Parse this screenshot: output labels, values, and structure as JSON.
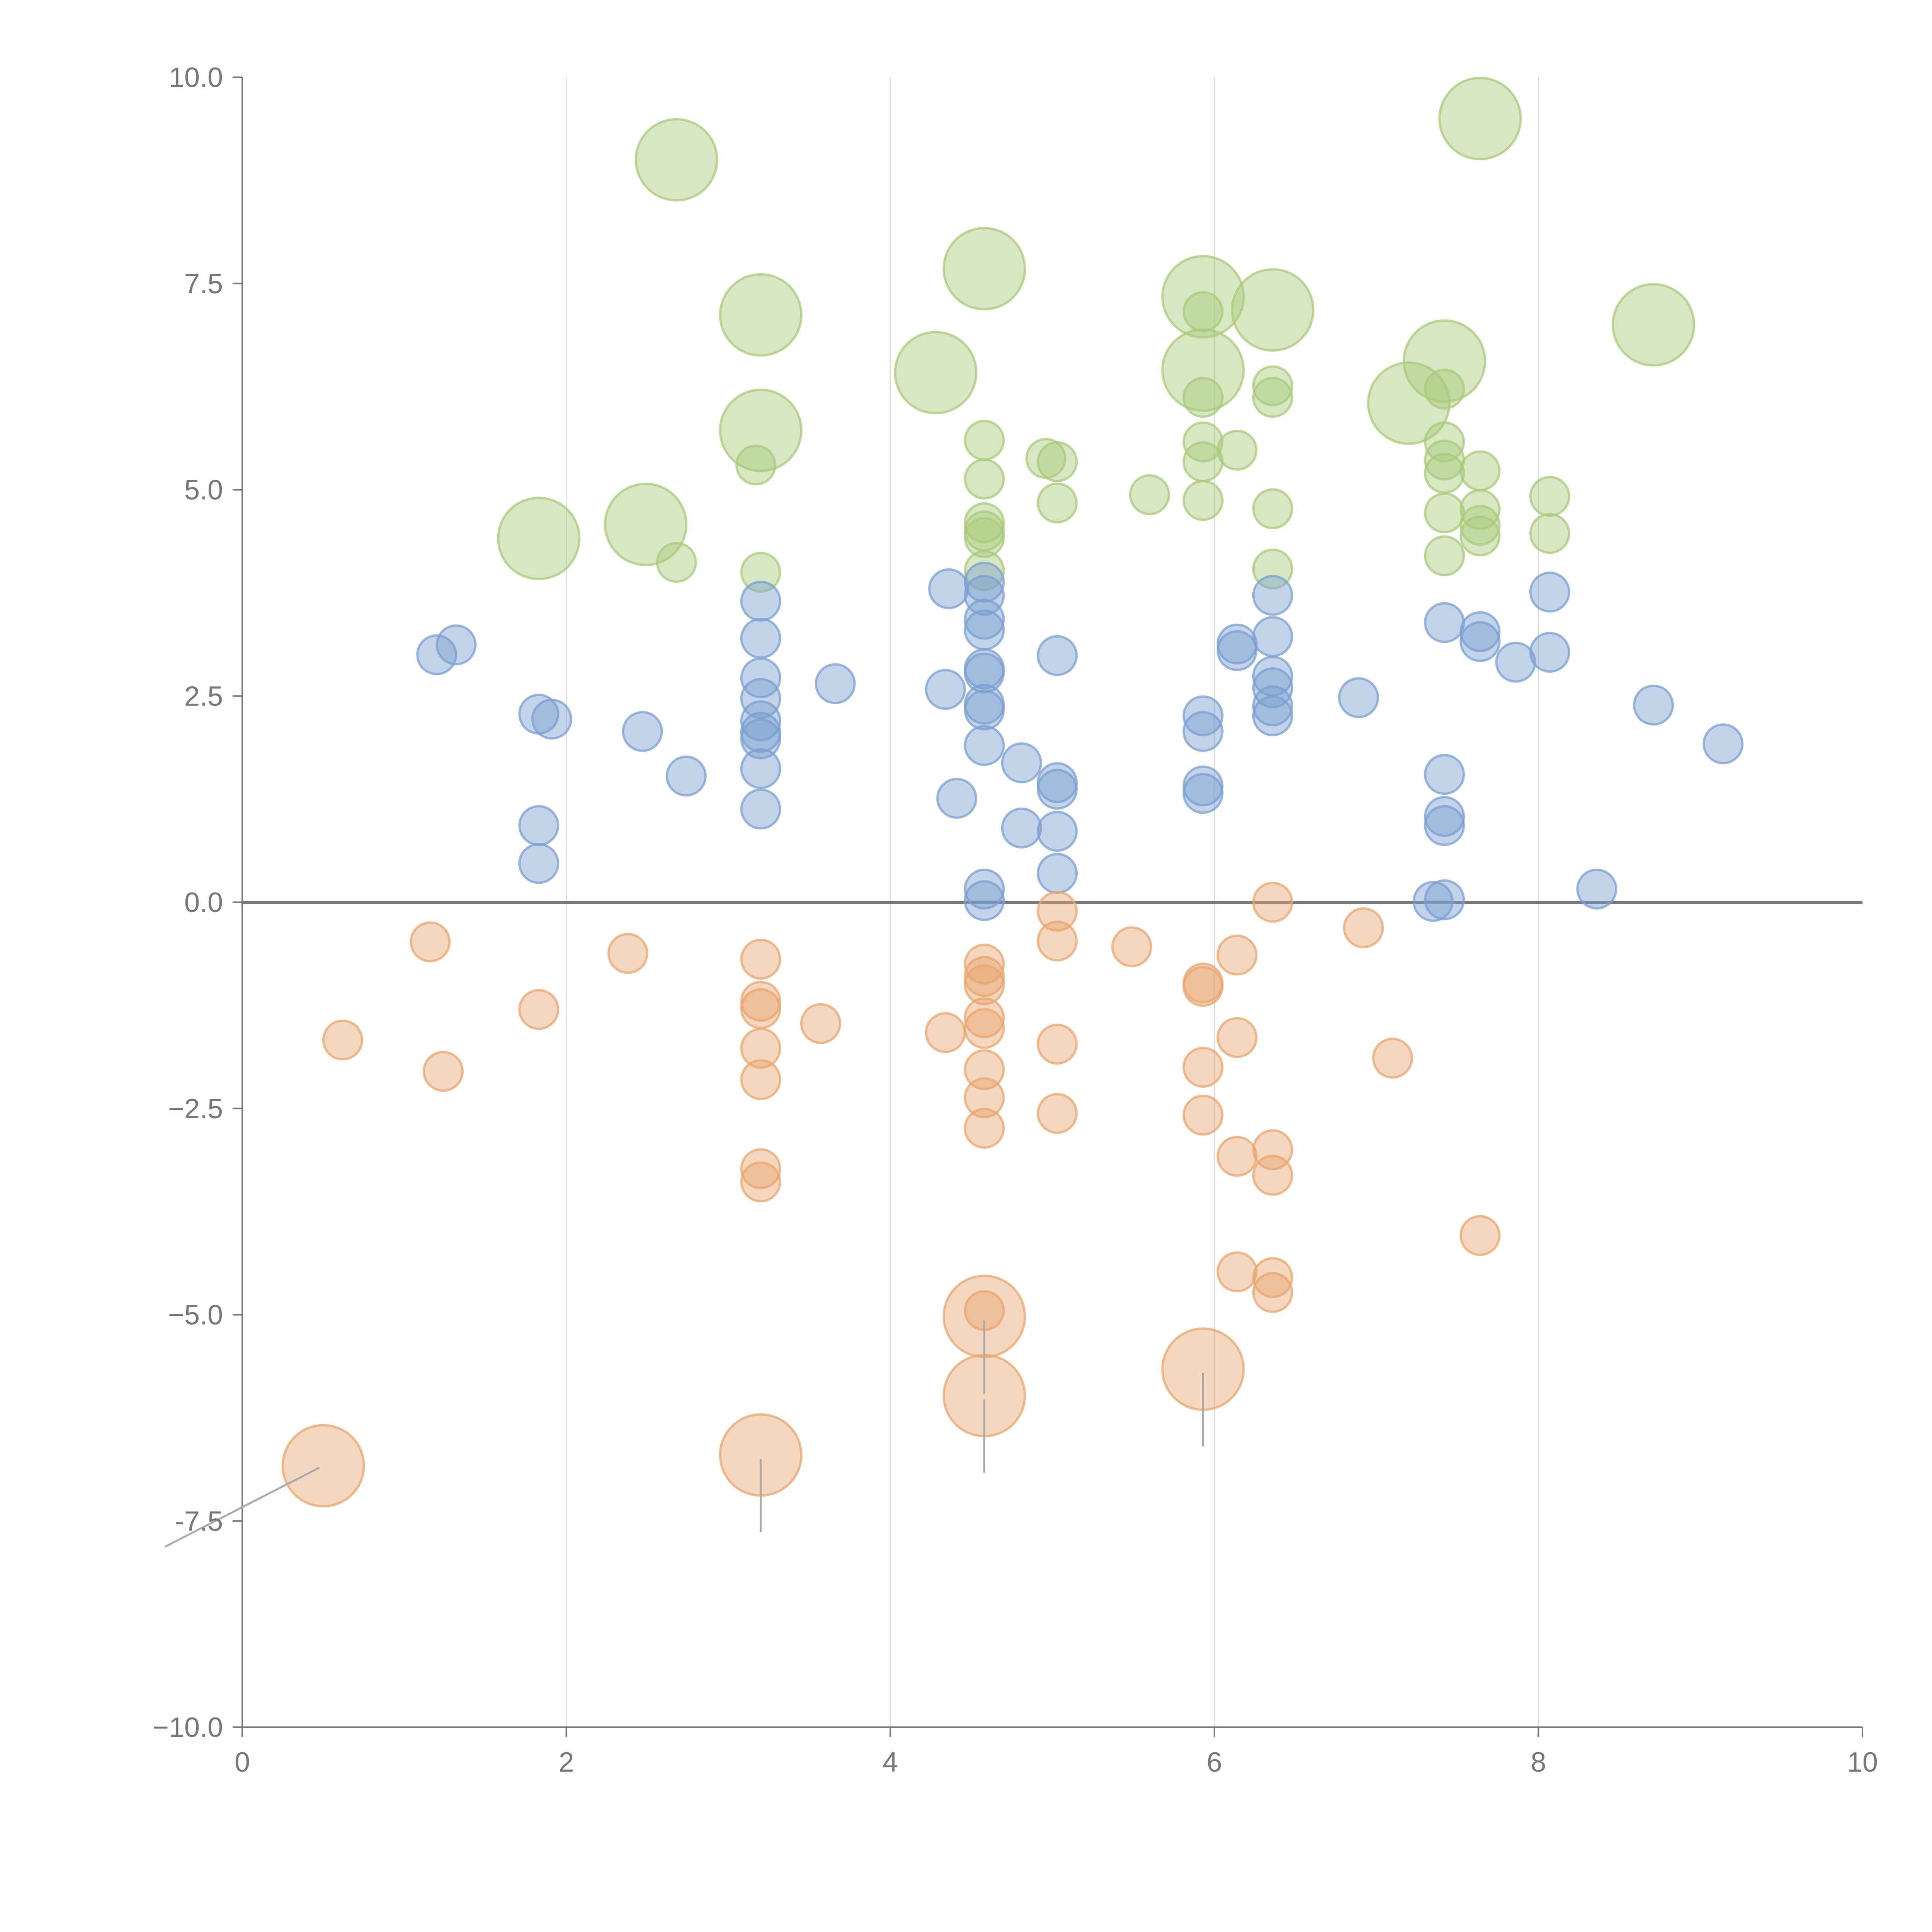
{
  "chart_data": {
    "type": "scatter",
    "title": "",
    "xlabel": "",
    "ylabel": "",
    "xlim": [
      0,
      10
    ],
    "ylim": [
      -10,
      10
    ],
    "x_ticks": [
      "0",
      "2",
      "4",
      "6",
      "8",
      "10"
    ],
    "y_ticks": [
      "10.0",
      "7.5",
      "5.0",
      "2.5",
      "0.0",
      "−2.5",
      "−5.0",
      "-7.5",
      "−10.0"
    ],
    "x_tick_values": [
      0,
      2,
      4,
      6,
      8,
      10
    ],
    "y_tick_values": [
      10,
      7.5,
      5,
      2.5,
      0,
      -2.5,
      -5,
      -7.5,
      -10
    ],
    "grid": {
      "vertical": [
        2,
        4,
        6,
        8
      ],
      "horizontal": []
    },
    "zero_line": 0,
    "colors": {
      "green": "#a9c97a",
      "blue": "#7b9fd0",
      "orange": "#e8a56e",
      "axis": "#777777",
      "grid": "#dddddd"
    },
    "series": [
      {
        "name": "green",
        "color": "#a9c97a",
        "points": [
          {
            "x": 2.68,
            "y": 9.0,
            "s": 1
          },
          {
            "x": 7.64,
            "y": 9.5,
            "s": 1
          },
          {
            "x": 4.58,
            "y": 7.68,
            "s": 1
          },
          {
            "x": 3.2,
            "y": 7.12,
            "s": 1
          },
          {
            "x": 5.93,
            "y": 7.34,
            "s": 1
          },
          {
            "x": 6.36,
            "y": 7.18,
            "s": 1
          },
          {
            "x": 8.71,
            "y": 7.0,
            "s": 1
          },
          {
            "x": 4.28,
            "y": 6.42,
            "s": 1
          },
          {
            "x": 5.93,
            "y": 6.45,
            "s": 1
          },
          {
            "x": 7.42,
            "y": 6.56,
            "s": 1
          },
          {
            "x": 7.2,
            "y": 6.05,
            "s": 1
          },
          {
            "x": 3.2,
            "y": 5.72,
            "s": 1
          },
          {
            "x": 1.83,
            "y": 4.41,
            "s": 1
          },
          {
            "x": 2.49,
            "y": 4.58,
            "s": 1
          },
          {
            "x": 3.17,
            "y": 5.3,
            "s": 0
          },
          {
            "x": 2.68,
            "y": 4.12,
            "s": 0
          },
          {
            "x": 3.2,
            "y": 4.0,
            "s": 0
          },
          {
            "x": 4.58,
            "y": 5.6,
            "s": 0
          },
          {
            "x": 4.58,
            "y": 5.13,
            "s": 0
          },
          {
            "x": 4.58,
            "y": 4.6,
            "s": 0
          },
          {
            "x": 4.58,
            "y": 4.5,
            "s": 0
          },
          {
            "x": 4.58,
            "y": 4.42,
            "s": 0
          },
          {
            "x": 4.58,
            "y": 4.02,
            "s": 0
          },
          {
            "x": 4.96,
            "y": 5.38,
            "s": 0
          },
          {
            "x": 5.03,
            "y": 5.34,
            "s": 0
          },
          {
            "x": 5.03,
            "y": 4.84,
            "s": 0
          },
          {
            "x": 5.6,
            "y": 4.94,
            "s": 0
          },
          {
            "x": 5.93,
            "y": 7.16,
            "s": 0
          },
          {
            "x": 5.93,
            "y": 6.12,
            "s": 0
          },
          {
            "x": 5.93,
            "y": 5.58,
            "s": 0
          },
          {
            "x": 5.93,
            "y": 5.34,
            "s": 0
          },
          {
            "x": 5.93,
            "y": 4.87,
            "s": 0
          },
          {
            "x": 6.14,
            "y": 5.48,
            "s": 0
          },
          {
            "x": 6.36,
            "y": 6.26,
            "s": 0
          },
          {
            "x": 6.36,
            "y": 6.12,
            "s": 0
          },
          {
            "x": 6.36,
            "y": 4.77,
            "s": 0
          },
          {
            "x": 6.36,
            "y": 4.04,
            "s": 0
          },
          {
            "x": 7.42,
            "y": 6.22,
            "s": 0
          },
          {
            "x": 7.42,
            "y": 5.58,
            "s": 0
          },
          {
            "x": 7.42,
            "y": 5.36,
            "s": 0
          },
          {
            "x": 7.42,
            "y": 5.2,
            "s": 0
          },
          {
            "x": 7.42,
            "y": 4.72,
            "s": 0
          },
          {
            "x": 7.42,
            "y": 4.2,
            "s": 0
          },
          {
            "x": 7.64,
            "y": 5.23,
            "s": 0
          },
          {
            "x": 7.64,
            "y": 4.76,
            "s": 0
          },
          {
            "x": 7.64,
            "y": 4.57,
            "s": 0
          },
          {
            "x": 7.64,
            "y": 4.44,
            "s": 0
          },
          {
            "x": 8.07,
            "y": 4.92,
            "s": 0
          },
          {
            "x": 8.07,
            "y": 4.47,
            "s": 0
          }
        ]
      },
      {
        "name": "blue",
        "color": "#7b9fd0",
        "points": [
          {
            "x": 1.2,
            "y": 3.0,
            "s": 0
          },
          {
            "x": 1.32,
            "y": 3.12,
            "s": 0
          },
          {
            "x": 1.83,
            "y": 2.28,
            "s": 0
          },
          {
            "x": 1.91,
            "y": 2.22,
            "s": 0
          },
          {
            "x": 1.83,
            "y": 0.93,
            "s": 0
          },
          {
            "x": 1.83,
            "y": 0.47,
            "s": 0
          },
          {
            "x": 2.47,
            "y": 2.07,
            "s": 0
          },
          {
            "x": 2.74,
            "y": 1.53,
            "s": 0
          },
          {
            "x": 3.2,
            "y": 3.65,
            "s": 0
          },
          {
            "x": 3.2,
            "y": 3.2,
            "s": 0
          },
          {
            "x": 3.2,
            "y": 2.72,
            "s": 0
          },
          {
            "x": 3.2,
            "y": 2.47,
            "s": 0
          },
          {
            "x": 3.2,
            "y": 2.2,
            "s": 0
          },
          {
            "x": 3.2,
            "y": 2.06,
            "s": 0
          },
          {
            "x": 3.2,
            "y": 1.98,
            "s": 0
          },
          {
            "x": 3.2,
            "y": 1.62,
            "s": 0
          },
          {
            "x": 3.2,
            "y": 1.13,
            "s": 0
          },
          {
            "x": 3.66,
            "y": 2.65,
            "s": 0
          },
          {
            "x": 4.36,
            "y": 3.8,
            "s": 0
          },
          {
            "x": 4.34,
            "y": 2.58,
            "s": 0
          },
          {
            "x": 4.41,
            "y": 1.26,
            "s": 0
          },
          {
            "x": 4.58,
            "y": 3.88,
            "s": 0
          },
          {
            "x": 4.58,
            "y": 3.72,
            "s": 0
          },
          {
            "x": 4.58,
            "y": 3.43,
            "s": 0
          },
          {
            "x": 4.58,
            "y": 3.3,
            "s": 0
          },
          {
            "x": 4.58,
            "y": 2.83,
            "s": 0
          },
          {
            "x": 4.58,
            "y": 2.78,
            "s": 0
          },
          {
            "x": 4.58,
            "y": 2.4,
            "s": 0
          },
          {
            "x": 4.58,
            "y": 2.33,
            "s": 0
          },
          {
            "x": 4.58,
            "y": 1.9,
            "s": 0
          },
          {
            "x": 4.58,
            "y": 0.16,
            "s": 0
          },
          {
            "x": 4.58,
            "y": 0.02,
            "s": 0
          },
          {
            "x": 4.81,
            "y": 1.69,
            "s": 0
          },
          {
            "x": 4.81,
            "y": 0.9,
            "s": 0
          },
          {
            "x": 5.03,
            "y": 2.99,
            "s": 0
          },
          {
            "x": 5.03,
            "y": 1.45,
            "s": 0
          },
          {
            "x": 5.03,
            "y": 1.37,
            "s": 0
          },
          {
            "x": 5.03,
            "y": 0.86,
            "s": 0
          },
          {
            "x": 5.03,
            "y": 0.35,
            "s": 0
          },
          {
            "x": 5.93,
            "y": 2.26,
            "s": 0
          },
          {
            "x": 5.93,
            "y": 2.07,
            "s": 0
          },
          {
            "x": 5.93,
            "y": 1.41,
            "s": 0
          },
          {
            "x": 5.93,
            "y": 1.32,
            "s": 0
          },
          {
            "x": 6.14,
            "y": 3.13,
            "s": 0
          },
          {
            "x": 6.14,
            "y": 3.05,
            "s": 0
          },
          {
            "x": 6.36,
            "y": 3.72,
            "s": 0
          },
          {
            "x": 6.36,
            "y": 3.22,
            "s": 0
          },
          {
            "x": 6.36,
            "y": 2.74,
            "s": 0
          },
          {
            "x": 6.36,
            "y": 2.6,
            "s": 0
          },
          {
            "x": 6.36,
            "y": 2.38,
            "s": 0
          },
          {
            "x": 6.36,
            "y": 2.26,
            "s": 0
          },
          {
            "x": 6.89,
            "y": 2.48,
            "s": 0
          },
          {
            "x": 7.35,
            "y": 0.01,
            "s": 0
          },
          {
            "x": 7.42,
            "y": 3.39,
            "s": 0
          },
          {
            "x": 7.42,
            "y": 1.55,
            "s": 0
          },
          {
            "x": 7.42,
            "y": 1.04,
            "s": 0
          },
          {
            "x": 7.42,
            "y": 0.93,
            "s": 0
          },
          {
            "x": 7.42,
            "y": 0.03,
            "s": 0
          },
          {
            "x": 7.64,
            "y": 3.28,
            "s": 0
          },
          {
            "x": 7.64,
            "y": 3.16,
            "s": 0
          },
          {
            "x": 7.86,
            "y": 2.91,
            "s": 0
          },
          {
            "x": 8.07,
            "y": 3.76,
            "s": 0
          },
          {
            "x": 8.07,
            "y": 3.03,
            "s": 0
          },
          {
            "x": 8.36,
            "y": 0.16,
            "s": 0
          },
          {
            "x": 8.71,
            "y": 2.39,
            "s": 0
          },
          {
            "x": 9.14,
            "y": 1.92,
            "s": 0
          }
        ]
      },
      {
        "name": "orange",
        "color": "#e8a56e",
        "points": [
          {
            "x": 0.62,
            "y": -1.67,
            "s": 0
          },
          {
            "x": 1.16,
            "y": -0.48,
            "s": 0
          },
          {
            "x": 1.24,
            "y": -2.05,
            "s": 0
          },
          {
            "x": 1.83,
            "y": -1.3,
            "s": 0
          },
          {
            "x": 2.38,
            "y": -0.62,
            "s": 0
          },
          {
            "x": 3.2,
            "y": -0.69,
            "s": 0
          },
          {
            "x": 3.2,
            "y": -1.2,
            "s": 0
          },
          {
            "x": 3.2,
            "y": -1.29,
            "s": 0
          },
          {
            "x": 3.2,
            "y": -1.77,
            "s": 0
          },
          {
            "x": 3.2,
            "y": -2.15,
            "s": 0
          },
          {
            "x": 3.2,
            "y": -3.23,
            "s": 0
          },
          {
            "x": 3.2,
            "y": -3.39,
            "s": 0
          },
          {
            "x": 3.57,
            "y": -1.47,
            "s": 0
          },
          {
            "x": 4.34,
            "y": -1.58,
            "s": 0
          },
          {
            "x": 4.58,
            "y": -0.75,
            "s": 0
          },
          {
            "x": 4.58,
            "y": -0.9,
            "s": 0
          },
          {
            "x": 4.58,
            "y": -1.0,
            "s": 0
          },
          {
            "x": 4.58,
            "y": -1.4,
            "s": 0
          },
          {
            "x": 4.58,
            "y": -1.53,
            "s": 0
          },
          {
            "x": 4.58,
            "y": -2.03,
            "s": 0
          },
          {
            "x": 4.58,
            "y": -2.37,
            "s": 0
          },
          {
            "x": 4.58,
            "y": -2.74,
            "s": 0
          },
          {
            "x": 4.58,
            "y": -4.95,
            "s": 0
          },
          {
            "x": 5.03,
            "y": -0.11,
            "s": 0
          },
          {
            "x": 5.03,
            "y": -0.47,
            "s": 0
          },
          {
            "x": 5.03,
            "y": -1.72,
            "s": 0
          },
          {
            "x": 5.03,
            "y": -2.56,
            "s": 0
          },
          {
            "x": 5.49,
            "y": -0.54,
            "s": 0
          },
          {
            "x": 5.93,
            "y": -0.98,
            "s": 0
          },
          {
            "x": 5.93,
            "y": -1.02,
            "s": 0
          },
          {
            "x": 5.93,
            "y": -2.0,
            "s": 0
          },
          {
            "x": 5.93,
            "y": -2.58,
            "s": 0
          },
          {
            "x": 6.14,
            "y": -0.64,
            "s": 0
          },
          {
            "x": 6.14,
            "y": -1.64,
            "s": 0
          },
          {
            "x": 6.14,
            "y": -3.08,
            "s": 0
          },
          {
            "x": 6.14,
            "y": -4.48,
            "s": 0
          },
          {
            "x": 6.36,
            "y": 0.0,
            "s": 0
          },
          {
            "x": 6.36,
            "y": -3.0,
            "s": 0
          },
          {
            "x": 6.36,
            "y": -3.31,
            "s": 0
          },
          {
            "x": 6.36,
            "y": -4.55,
            "s": 0
          },
          {
            "x": 6.36,
            "y": -4.73,
            "s": 0
          },
          {
            "x": 6.92,
            "y": -0.31,
            "s": 0
          },
          {
            "x": 7.1,
            "y": -1.89,
            "s": 0
          },
          {
            "x": 7.64,
            "y": -4.04,
            "s": 0
          },
          {
            "x": 4.58,
            "y": -5.02,
            "s": 1
          },
          {
            "x": 4.58,
            "y": -5.98,
            "s": 1
          },
          {
            "x": 5.93,
            "y": -5.66,
            "s": 1
          },
          {
            "x": 3.2,
            "y": -6.7,
            "s": 1
          },
          {
            "x": 0.5,
            "y": -6.83,
            "s": 1
          }
        ]
      }
    ]
  }
}
